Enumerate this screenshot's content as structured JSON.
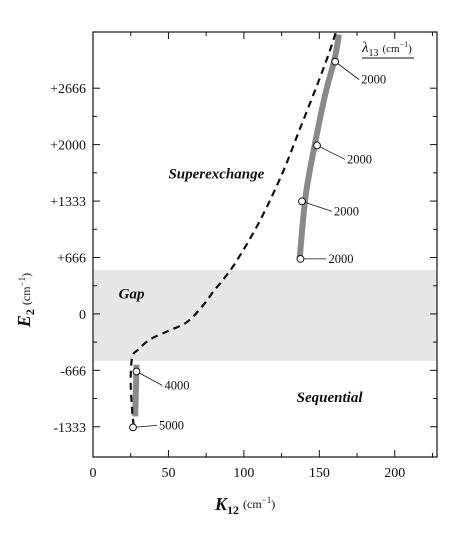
{
  "chart_data": {
    "type": "line",
    "xlabel": {
      "symbol": "K",
      "subscript": "12",
      "unit": "(cm",
      "unit_sup": "−1",
      "unit_close": ")"
    },
    "ylabel": {
      "symbol": "E",
      "subscript": "2",
      "unit": "(cm",
      "unit_sup": "−1",
      "unit_close": ")"
    },
    "xlim": [
      0,
      228
    ],
    "ylim": [
      -1690,
      3330
    ],
    "x_ticks": [
      {
        "value": 0,
        "label": "0"
      },
      {
        "value": 50,
        "label": "50"
      },
      {
        "value": 100,
        "label": "100"
      },
      {
        "value": 150,
        "label": "150"
      },
      {
        "value": 200,
        "label": "200"
      }
    ],
    "y_ticks": [
      {
        "value": 2666,
        "label": "+2666"
      },
      {
        "value": 2000,
        "label": "+2000"
      },
      {
        "value": 1333,
        "label": "+1333"
      },
      {
        "value": 666,
        "label": "+666"
      },
      {
        "value": 0,
        "label": "0"
      },
      {
        "value": -666,
        "label": "-666"
      },
      {
        "value": -1333,
        "label": "-1333"
      }
    ],
    "gap_band": {
      "y_from": -555,
      "y_to": 520
    },
    "regions": [
      {
        "label": "Superexchange",
        "x": 50,
        "y": 1600
      },
      {
        "label": "Gap",
        "x": 17,
        "y": 180
      },
      {
        "label": "Sequential",
        "x": 135,
        "y": -1040
      }
    ],
    "legend": {
      "symbol": "λ",
      "subscript": "13",
      "unit": "(cm",
      "unit_sup": "−1",
      "unit_close": ")"
    },
    "dashed_boundary": [
      [
        27,
        -1320
      ],
      [
        26,
        -1150
      ],
      [
        25,
        -800
      ],
      [
        26,
        -510
      ],
      [
        30,
        -420
      ],
      [
        38,
        -300
      ],
      [
        50,
        -200
      ],
      [
        62,
        -100
      ],
      [
        72,
        80
      ],
      [
        80,
        270
      ],
      [
        86,
        400
      ],
      [
        95,
        620
      ],
      [
        110,
        1080
      ],
      [
        125,
        1640
      ],
      [
        137,
        2180
      ],
      [
        150,
        2770
      ],
      [
        157,
        3110
      ],
      [
        161,
        3330
      ]
    ],
    "gray_curves": [
      {
        "points": [
          [
            28,
            -1210
          ],
          [
            28.8,
            -600
          ]
        ]
      },
      {
        "points": [
          [
            137,
            660
          ],
          [
            141,
            1400
          ],
          [
            147,
            2000
          ],
          [
            154,
            2600
          ],
          [
            160,
            3000
          ],
          [
            163,
            3300
          ]
        ]
      }
    ],
    "points": [
      {
        "x": 28.8,
        "y": -680,
        "label": "4000"
      },
      {
        "x": 26.5,
        "y": -1340,
        "label": "5000"
      },
      {
        "x": 160.5,
        "y": 2980,
        "label": "2000"
      },
      {
        "x": 148.5,
        "y": 1990,
        "label": "2000"
      },
      {
        "x": 138.5,
        "y": 1330,
        "label": "2000"
      },
      {
        "x": 137.5,
        "y": 650,
        "label": "2000"
      }
    ],
    "grid": false
  }
}
